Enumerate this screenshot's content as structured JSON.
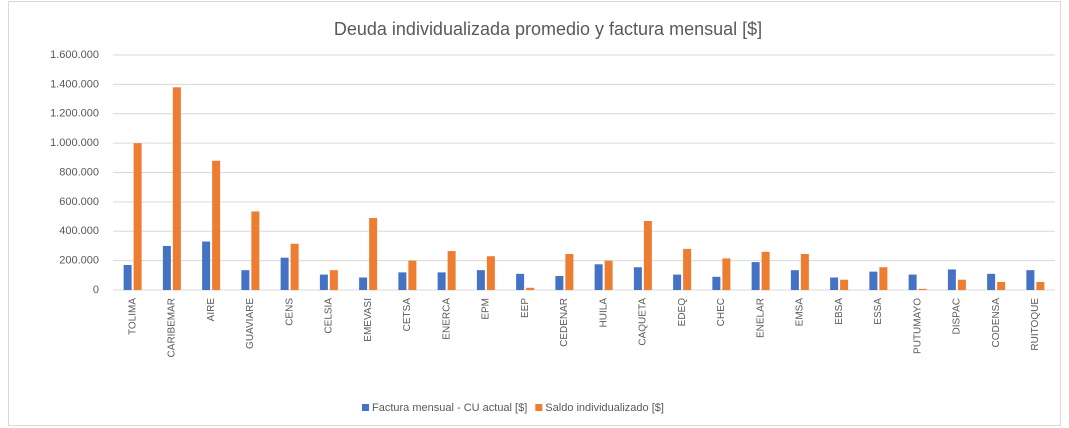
{
  "chart_data": {
    "type": "bar",
    "title": "Deuda individualizada promedio y factura mensual [$]",
    "categories": [
      "TOLIMA",
      "CARIBEMAR",
      "AIRE",
      "GUAVIARE",
      "CENS",
      "CELSIA",
      "EMEVASI",
      "CETSA",
      "ENERCA",
      "EPM",
      "EEP",
      "CEDENAR",
      "HUILA",
      "CAQUETA",
      "EDEQ",
      "CHEC",
      "ENELAR",
      "EMSA",
      "EBSA",
      "ESSA",
      "PUTUMAYO",
      "DISPAC",
      "CODENSA",
      "RUITOQUE"
    ],
    "series": [
      {
        "name": "Factura mensual - CU actual [$]",
        "color": "#4472c4",
        "values": [
          170000,
          300000,
          330000,
          135000,
          220000,
          105000,
          85000,
          120000,
          120000,
          135000,
          110000,
          95000,
          175000,
          155000,
          105000,
          90000,
          190000,
          135000,
          85000,
          125000,
          105000,
          140000,
          110000,
          135000
        ]
      },
      {
        "name": "Saldo individualizado [$]",
        "color": "#ed7d31",
        "values": [
          1000000,
          1380000,
          880000,
          535000,
          315000,
          135000,
          490000,
          200000,
          265000,
          230000,
          15000,
          245000,
          200000,
          470000,
          280000,
          215000,
          260000,
          245000,
          70000,
          155000,
          8000,
          70000,
          55000,
          55000
        ]
      }
    ],
    "ylim": [
      0,
      1600000
    ],
    "yticks": [
      0,
      {
        "value": 200000,
        "label": "200.000"
      },
      {
        "value": 400000,
        "label": "400.000"
      },
      {
        "value": 600000,
        "label": "600.000"
      },
      {
        "value": 800000,
        "label": "800.000"
      },
      {
        "value": 1000000,
        "label": "1.000.000"
      },
      {
        "value": 1200000,
        "label": "1.200.000"
      },
      {
        "value": 1400000,
        "label": "1.400.000"
      },
      {
        "value": 1600000,
        "label": "1.600.000"
      }
    ],
    "grid": true,
    "legend": "bottom"
  }
}
